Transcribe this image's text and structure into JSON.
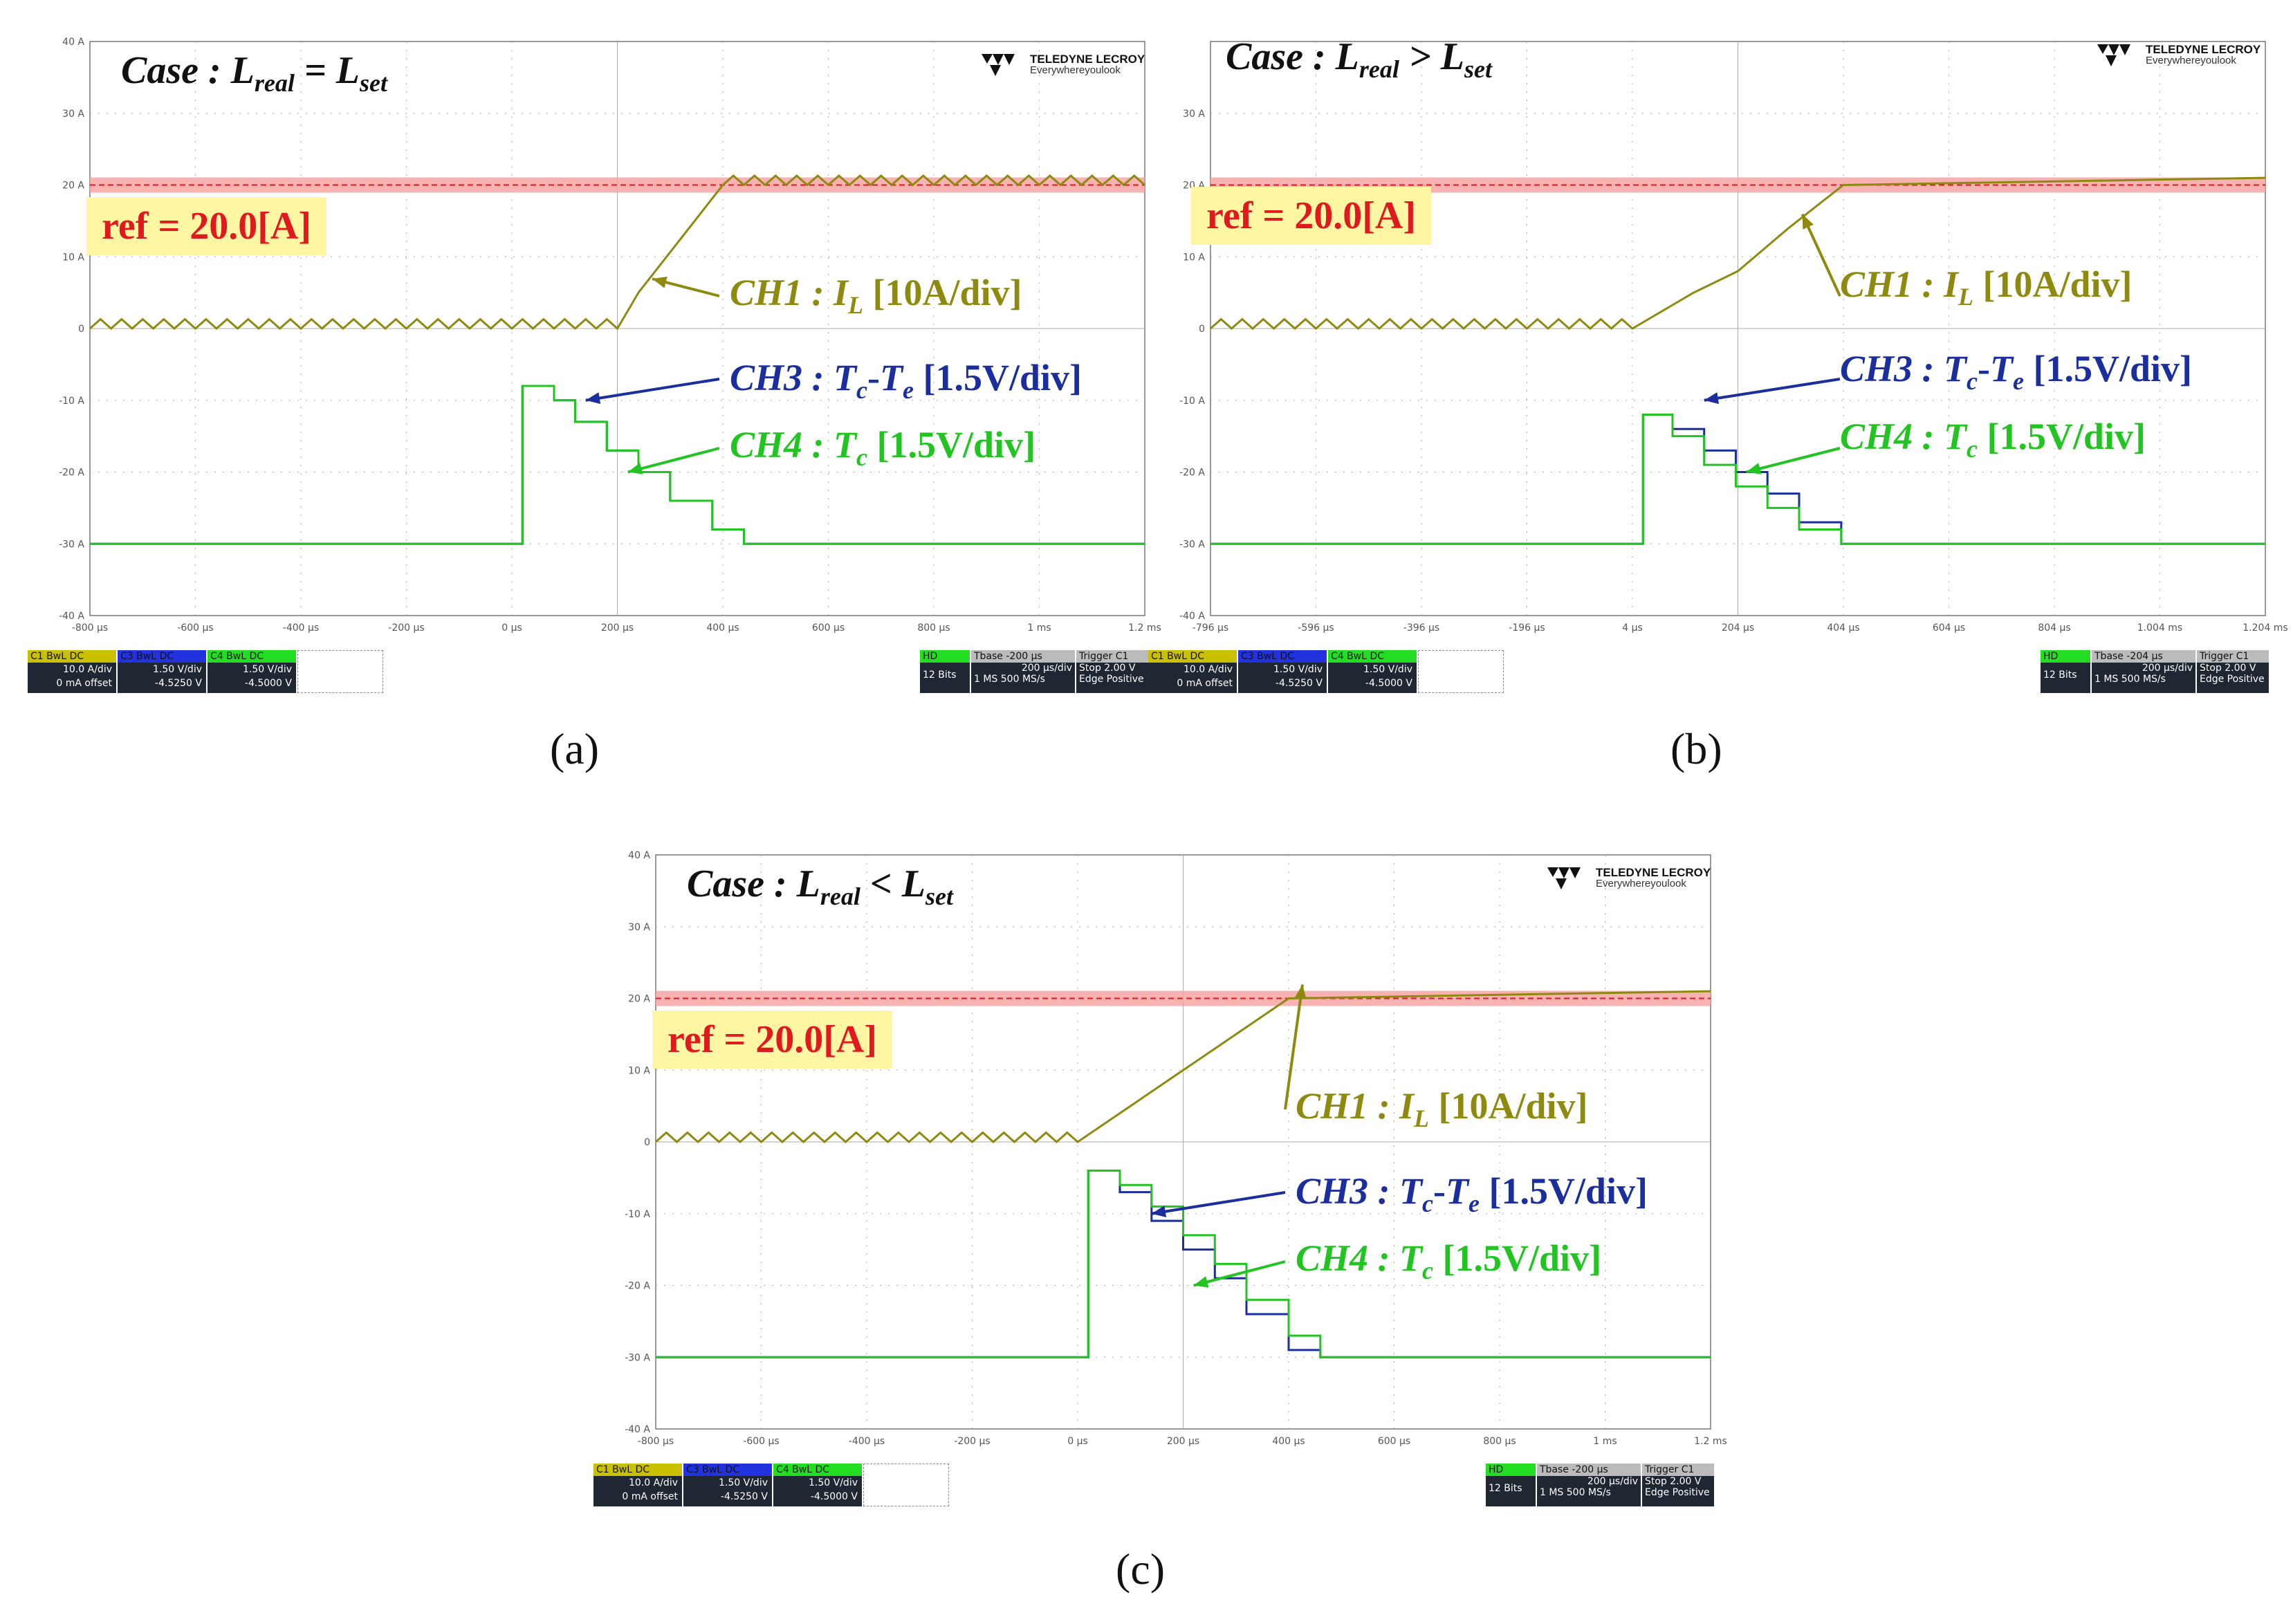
{
  "colors": {
    "ch1": "#8e8a10",
    "ch3": "#1a2e9e",
    "ch4": "#22c422",
    "ref": "#e0191f",
    "grid": "#888888"
  },
  "panels": [
    {
      "id": "a",
      "case": {
        "prefix": "Case : L",
        "sub1": "real",
        "op": " = L",
        "sub2": "set"
      },
      "caption": "(a)",
      "ref_label": "ref = 20.0[A]",
      "brand": {
        "name": "TELEDYNE LECROY",
        "tag": "Everywhereyoulook"
      },
      "annotations": {
        "ch1": {
          "pre": "CH1 : ",
          "var": "I",
          "sub": "L",
          "post": " [10A/div]"
        },
        "ch3": {
          "pre": "CH3 : ",
          "var": "T",
          "sub": "c",
          "mid": "-",
          "var2": "T",
          "sub2": "e",
          "post": " [1.5V/div]"
        },
        "ch4": {
          "pre": "CH4 : ",
          "var": "T",
          "sub": "c",
          "post": " [1.5V/div]"
        }
      },
      "y_ticks": [
        "40 A",
        "30 A",
        "20 A",
        "10 A",
        "0",
        "-10 A",
        "-20 A",
        "-30 A",
        "-40 A"
      ],
      "x_ticks": [
        "-800 µs",
        "-600 µs",
        "-400 µs",
        "-200 µs",
        "0 µs",
        "200 µs",
        "400 µs",
        "600 µs",
        "800 µs",
        "1 ms",
        "1.2 ms"
      ],
      "status": {
        "c1": {
          "label": "C1",
          "tags": "BwL DC",
          "scale": "10.0 A/div",
          "offset": "0 mA offset"
        },
        "c3": {
          "label": "C3",
          "tags": "BwL DC",
          "scale": "1.50 V/div",
          "offset": "-4.5250 V"
        },
        "c4": {
          "label": "C4",
          "tags": "BwL DC",
          "scale": "1.50 V/div",
          "offset": "-4.5000 V"
        },
        "hd": {
          "label": "HD",
          "bits": "12 Bits"
        },
        "tbase": {
          "label": "Tbase",
          "delay": "-200 µs",
          "per_div": "200 µs/div",
          "samples": "1 MS",
          "rate": "500 MS/s"
        },
        "trigger": {
          "label": "Trigger",
          "chan": "C1 DC",
          "mode": "Stop",
          "level": "2.00 V",
          "type": "Edge",
          "slope": "Positive"
        }
      }
    },
    {
      "id": "b",
      "case": {
        "prefix": "Case : L",
        "sub1": "real",
        "op": " > L",
        "sub2": "set"
      },
      "caption": "(b)",
      "ref_label": "ref = 20.0[A]",
      "brand": {
        "name": "TELEDYNE LECROY",
        "tag": "Everywhereyoulook"
      },
      "annotations": {
        "ch1": {
          "pre": "CH1 : ",
          "var": "I",
          "sub": "L",
          "post": " [10A/div]"
        },
        "ch3": {
          "pre": "CH3 : ",
          "var": "T",
          "sub": "c",
          "mid": "-",
          "var2": "T",
          "sub2": "e",
          "post": " [1.5V/div]"
        },
        "ch4": {
          "pre": "CH4 : ",
          "var": "T",
          "sub": "c",
          "post": " [1.5V/div]"
        }
      },
      "y_ticks": [
        "",
        "30 A",
        "20 A",
        "10 A",
        "0",
        "-10 A",
        "-20 A",
        "-30 A",
        "-40 A"
      ],
      "x_ticks": [
        "-796 µs",
        "-596 µs",
        "-396 µs",
        "-196 µs",
        "4 µs",
        "204 µs",
        "404 µs",
        "604 µs",
        "804 µs",
        "1.004 ms",
        "1.204 ms"
      ],
      "status": {
        "c1": {
          "label": "C1",
          "tags": "BwL DC",
          "scale": "10.0 A/div",
          "offset": "0 mA offset"
        },
        "c3": {
          "label": "C3",
          "tags": "BwL DC",
          "scale": "1.50 V/div",
          "offset": "-4.5250 V"
        },
        "c4": {
          "label": "C4",
          "tags": "BwL DC",
          "scale": "1.50 V/div",
          "offset": "-4.5000 V"
        },
        "hd": {
          "label": "HD",
          "bits": "12 Bits"
        },
        "tbase": {
          "label": "Tbase",
          "delay": "-204 µs",
          "per_div": "200 µs/div",
          "samples": "1 MS",
          "rate": "500 MS/s"
        },
        "trigger": {
          "label": "Trigger",
          "chan": "C1 DC",
          "mode": "Stop",
          "level": "2.00 V",
          "type": "Edge",
          "slope": "Positive"
        }
      }
    },
    {
      "id": "c",
      "case": {
        "prefix": "Case : L",
        "sub1": "real",
        "op": " < L",
        "sub2": "set"
      },
      "caption": "(c)",
      "ref_label": "ref = 20.0[A]",
      "brand": {
        "name": "TELEDYNE LECROY",
        "tag": "Everywhereyoulook"
      },
      "annotations": {
        "ch1": {
          "pre": "CH1 : ",
          "var": "I",
          "sub": "L",
          "post": " [10A/div]"
        },
        "ch3": {
          "pre": "CH3 : ",
          "var": "T",
          "sub": "c",
          "mid": "-",
          "var2": "T",
          "sub2": "e",
          "post": " [1.5V/div]"
        },
        "ch4": {
          "pre": "CH4 : ",
          "var": "T",
          "sub": "c",
          "post": " [1.5V/div]"
        }
      },
      "y_ticks": [
        "40 A",
        "30 A",
        "20 A",
        "10 A",
        "0",
        "-10 A",
        "-20 A",
        "-30 A",
        "-40 A"
      ],
      "x_ticks": [
        "-800 µs",
        "-600 µs",
        "-400 µs",
        "-200 µs",
        "0 µs",
        "200 µs",
        "400 µs",
        "600 µs",
        "800 µs",
        "1 ms",
        "1.2 ms"
      ],
      "status": {
        "c1": {
          "label": "C1",
          "tags": "BwL DC",
          "scale": "10.0 A/div",
          "offset": "0 mA offset"
        },
        "c3": {
          "label": "C3",
          "tags": "BwL DC",
          "scale": "1.50 V/div",
          "offset": "-4.5250 V"
        },
        "c4": {
          "label": "C4",
          "tags": "BwL DC",
          "scale": "1.50 V/div",
          "offset": "-4.5000 V"
        },
        "hd": {
          "label": "HD",
          "bits": "12 Bits"
        },
        "tbase": {
          "label": "Tbase",
          "delay": "-200 µs",
          "per_div": "200 µs/div",
          "samples": "1 MS",
          "rate": "500 MS/s"
        },
        "trigger": {
          "label": "Trigger",
          "chan": "C1 DC",
          "mode": "Stop",
          "level": "2.00 V",
          "type": "Edge",
          "slope": "Positive"
        }
      }
    }
  ],
  "chart_data": [
    {
      "type": "line",
      "x_unit": "µs",
      "y_unit": "A",
      "xlim": [
        -800,
        1200
      ],
      "ylim": [
        -40,
        40
      ],
      "reference_line": {
        "y": 20,
        "label": "ref = 20.0[A]"
      },
      "series": [
        {
          "name": "CH1",
          "x": [
            -800,
            -200,
            0,
            200,
            240,
            400,
            1200
          ],
          "y": [
            0,
            0,
            0,
            0,
            5,
            20,
            20
          ]
        },
        {
          "name": "CH3",
          "x": [
            -800,
            0,
            20,
            80,
            120,
            180,
            240,
            300,
            380,
            440,
            460,
            1200
          ],
          "y": [
            -30,
            -30,
            -8,
            -10,
            -13,
            -17,
            -20,
            -24,
            -28,
            -30,
            -30,
            -30
          ]
        },
        {
          "name": "CH4",
          "x": [
            -800,
            0,
            20,
            80,
            120,
            180,
            240,
            300,
            380,
            440,
            460,
            1200
          ],
          "y": [
            -30,
            -30,
            -8,
            -10,
            -13,
            -17,
            -20,
            -24,
            -28,
            -30,
            -30,
            -30
          ]
        }
      ]
    },
    {
      "type": "line",
      "x_unit": "µs",
      "y_unit": "A",
      "xlim": [
        -796,
        1204
      ],
      "ylim": [
        -40,
        40
      ],
      "reference_line": {
        "y": 20,
        "label": "ref = 20.0[A]"
      },
      "series": [
        {
          "name": "CH1",
          "x": [
            -796,
            4,
            120,
            204,
            300,
            404,
            1204
          ],
          "y": [
            0,
            0,
            5,
            8,
            14,
            20,
            21
          ]
        },
        {
          "name": "CH3",
          "x": [
            -796,
            4,
            24,
            80,
            140,
            200,
            260,
            320,
            400,
            440,
            1204
          ],
          "y": [
            -30,
            -30,
            -12,
            -14,
            -17,
            -20,
            -23,
            -27,
            -30,
            -30,
            -30
          ]
        },
        {
          "name": "CH4",
          "x": [
            -796,
            4,
            24,
            80,
            140,
            200,
            260,
            320,
            400,
            440,
            1204
          ],
          "y": [
            -30,
            -30,
            -12,
            -15,
            -19,
            -22,
            -25,
            -28,
            -30,
            -30,
            -30
          ]
        }
      ]
    },
    {
      "type": "line",
      "x_unit": "µs",
      "y_unit": "A",
      "xlim": [
        -800,
        1200
      ],
      "ylim": [
        -40,
        40
      ],
      "reference_line": {
        "y": 20,
        "label": "ref = 20.0[A]"
      },
      "series": [
        {
          "name": "CH1",
          "x": [
            -800,
            -200,
            0,
            200,
            400,
            1200
          ],
          "y": [
            0,
            0,
            0,
            10,
            20,
            21
          ]
        },
        {
          "name": "CH3",
          "x": [
            -800,
            0,
            20,
            80,
            140,
            200,
            260,
            320,
            400,
            460,
            1200
          ],
          "y": [
            -30,
            -30,
            -4,
            -7,
            -11,
            -15,
            -19,
            -24,
            -29,
            -30,
            -30
          ]
        },
        {
          "name": "CH4",
          "x": [
            -800,
            0,
            20,
            80,
            140,
            200,
            260,
            320,
            400,
            460,
            1200
          ],
          "y": [
            -30,
            -30,
            -4,
            -6,
            -9,
            -13,
            -17,
            -22,
            -27,
            -30,
            -30
          ]
        }
      ]
    }
  ]
}
